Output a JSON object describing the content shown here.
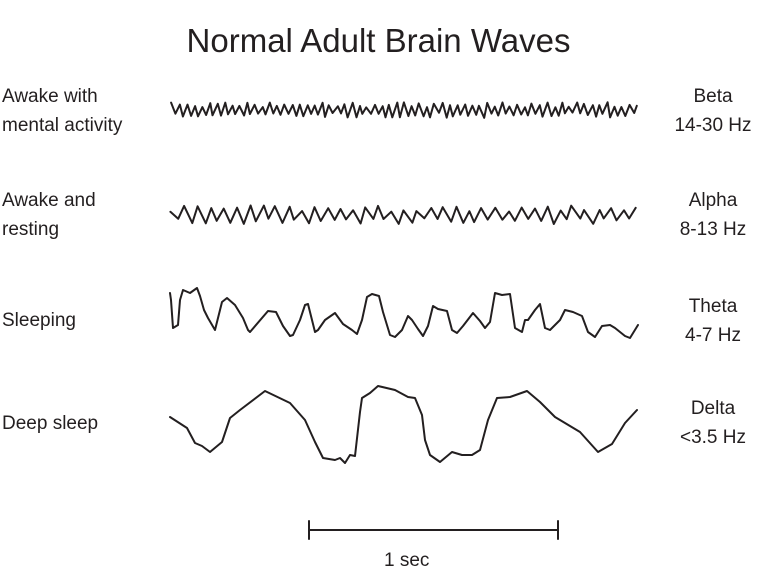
{
  "title": "Normal Adult Brain Waves",
  "rows": [
    {
      "state": [
        "Awake with",
        "mental activity"
      ],
      "band": "Beta",
      "range": "14-30 Hz"
    },
    {
      "state": [
        "Awake and",
        "resting"
      ],
      "band": "Alpha",
      "range": "8-13 Hz"
    },
    {
      "state": [
        "Sleeping"
      ],
      "band": "Theta",
      "range": "4-7 Hz"
    },
    {
      "state": [
        "Deep sleep"
      ],
      "band": "Delta",
      "range": "<3.5 Hz"
    }
  ],
  "scale_bar": {
    "label": "1 sec"
  },
  "line_color": "#231f20"
}
